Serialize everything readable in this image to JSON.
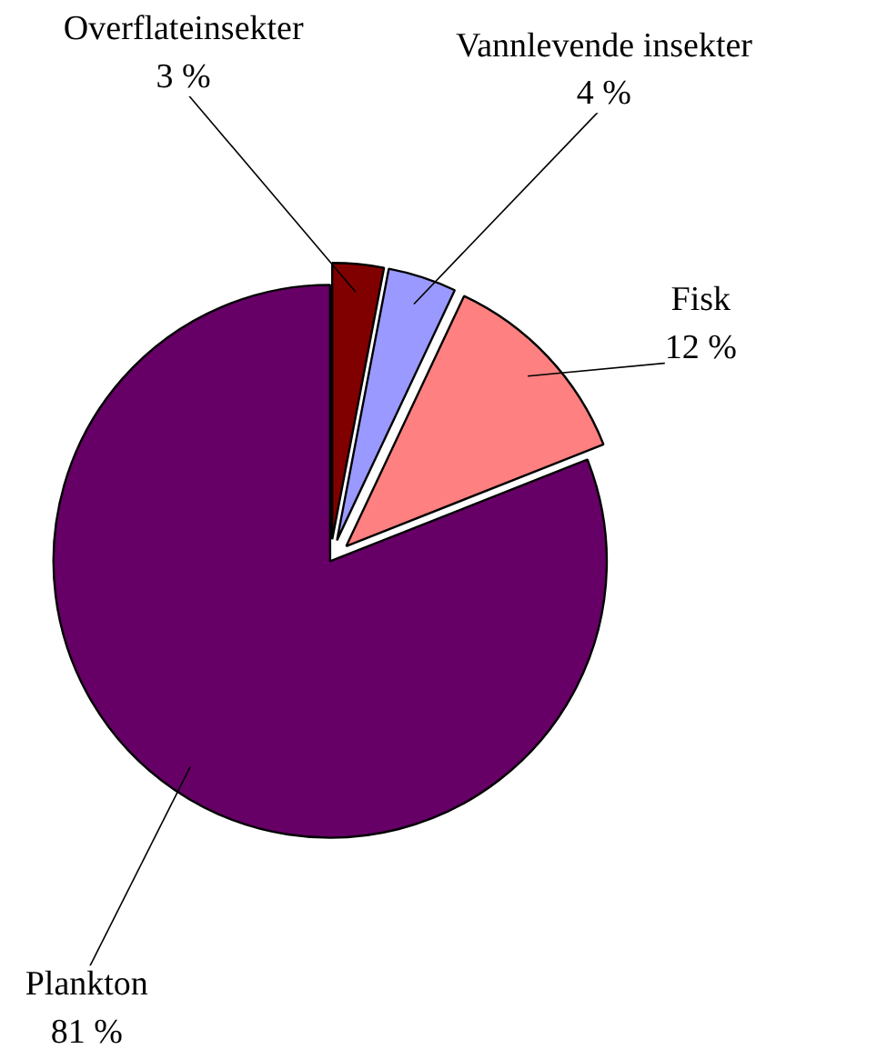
{
  "chart_data": {
    "type": "pie",
    "categories": [
      "Overflateinsekter",
      "Vannlevende insekter",
      "Fisk",
      "Plankton"
    ],
    "values": [
      3,
      4,
      12,
      81
    ],
    "colors": [
      "#800000",
      "#9999ff",
      "#ff8080",
      "#660066"
    ],
    "value_labels": [
      "3 %",
      "4 %",
      "12 %",
      "81 %"
    ]
  }
}
